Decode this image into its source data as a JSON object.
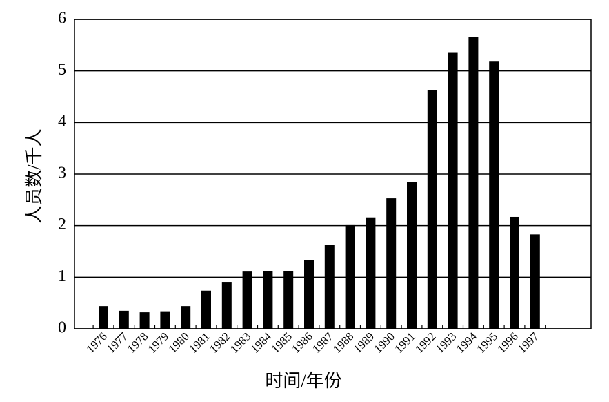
{
  "chart_data": {
    "type": "bar",
    "x_label": "时间/年份",
    "y_label": "人员数/千人",
    "categories": [
      "1976",
      "1977",
      "1978",
      "1979",
      "1980",
      "1981",
      "1982",
      "1983",
      "1984",
      "1985",
      "1986",
      "1987",
      "1988",
      "1989",
      "1990",
      "1991",
      "1992",
      "1993",
      "1994",
      "1995",
      "1996",
      "1997"
    ],
    "values": [
      0.44,
      0.35,
      0.32,
      0.34,
      0.44,
      0.74,
      0.91,
      1.11,
      1.12,
      1.12,
      1.33,
      1.63,
      2.01,
      2.16,
      2.53,
      2.85,
      4.63,
      5.35,
      5.66,
      5.18,
      2.17,
      1.83
    ],
    "color": "#000000",
    "ylim": [
      0,
      6
    ],
    "yticks": [
      0,
      1,
      2,
      3,
      4,
      5,
      6
    ],
    "grid": true
  }
}
